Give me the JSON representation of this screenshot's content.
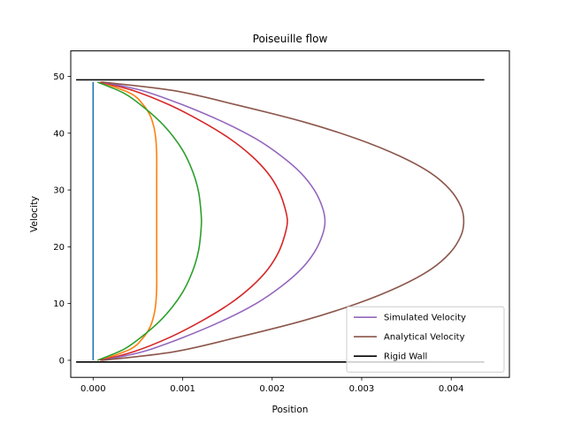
{
  "chart_data": {
    "type": "line",
    "title": "Poiseuille flow",
    "xlabel": "Position",
    "ylabel": "Velocity",
    "xlim": [
      -0.00025,
      0.00465
    ],
    "ylim": [
      -3,
      54.5
    ],
    "xticks": [
      0.0,
      0.001,
      0.002,
      0.003,
      0.004
    ],
    "xtick_labels": [
      "0.000",
      "0.001",
      "0.002",
      "0.003",
      "0.004"
    ],
    "yticks": [
      0,
      10,
      20,
      30,
      40,
      50
    ],
    "ytick_labels": [
      "0",
      "10",
      "20",
      "30",
      "40",
      "50"
    ],
    "grid": false,
    "legend_position": "lower-right",
    "series": [
      {
        "name": "",
        "color": "#1f77b4",
        "points": [
          [
            0.0,
            0
          ],
          [
            0.0,
            5
          ],
          [
            0.0,
            10
          ],
          [
            0.0,
            15
          ],
          [
            0.0,
            20
          ],
          [
            0.0,
            24.5
          ],
          [
            0.0,
            29
          ],
          [
            0.0,
            34
          ],
          [
            0.0,
            39
          ],
          [
            0.0,
            44
          ],
          [
            0.0,
            49
          ]
        ]
      },
      {
        "name": "",
        "color": "#ff7f0e",
        "points": [
          [
            8e-05,
            0
          ],
          [
            0.00042,
            2
          ],
          [
            0.00056,
            4
          ],
          [
            0.00064,
            6
          ],
          [
            0.00068,
            8
          ],
          [
            0.0007,
            10
          ],
          [
            0.00071,
            13
          ],
          [
            0.00071,
            17
          ],
          [
            0.00071,
            21
          ],
          [
            0.00071,
            24.5
          ],
          [
            0.00071,
            28
          ],
          [
            0.00071,
            32
          ],
          [
            0.00071,
            36
          ],
          [
            0.0007,
            39
          ],
          [
            0.00068,
            41
          ],
          [
            0.00064,
            43
          ],
          [
            0.00056,
            45
          ],
          [
            0.00042,
            47
          ],
          [
            8e-05,
            49
          ]
        ]
      },
      {
        "name": "",
        "color": "#2ca02c",
        "points": [
          [
            5e-05,
            0
          ],
          [
            0.00035,
            2
          ],
          [
            0.00057,
            4.5
          ],
          [
            0.00075,
            7
          ],
          [
            0.00089,
            9.5
          ],
          [
            0.001,
            12
          ],
          [
            0.00108,
            14.5
          ],
          [
            0.00114,
            17
          ],
          [
            0.00118,
            19.5
          ],
          [
            0.0012,
            22
          ],
          [
            0.00121,
            24.5
          ],
          [
            0.0012,
            27
          ],
          [
            0.00118,
            29.5
          ],
          [
            0.00114,
            32
          ],
          [
            0.00108,
            34.5
          ],
          [
            0.001,
            37
          ],
          [
            0.00089,
            39.5
          ],
          [
            0.00075,
            42
          ],
          [
            0.00057,
            44.5
          ],
          [
            0.00035,
            47
          ],
          [
            5e-05,
            49
          ]
        ]
      },
      {
        "name": "",
        "color": "#d62728",
        "points": [
          [
            8e-05,
            0
          ],
          [
            0.00045,
            1.5
          ],
          [
            0.00085,
            4
          ],
          [
            0.00122,
            7
          ],
          [
            0.00153,
            10
          ],
          [
            0.00177,
            13
          ],
          [
            0.00195,
            16
          ],
          [
            0.00207,
            19
          ],
          [
            0.00214,
            22
          ],
          [
            0.00217,
            24.5
          ],
          [
            0.00214,
            27
          ],
          [
            0.00207,
            30
          ],
          [
            0.00195,
            33
          ],
          [
            0.00177,
            36
          ],
          [
            0.00153,
            39
          ],
          [
            0.00122,
            42
          ],
          [
            0.00085,
            45
          ],
          [
            0.00045,
            47.5
          ],
          [
            8e-05,
            49
          ]
        ]
      },
      {
        "name": "Simulated Velocity",
        "color": "#9467bd",
        "points": [
          [
            0.0001,
            0
          ],
          [
            0.00055,
            1.5
          ],
          [
            0.001,
            4
          ],
          [
            0.00145,
            7
          ],
          [
            0.00182,
            10
          ],
          [
            0.0021,
            13
          ],
          [
            0.00232,
            16
          ],
          [
            0.00247,
            19
          ],
          [
            0.00256,
            22
          ],
          [
            0.00259,
            24.5
          ],
          [
            0.00256,
            27
          ],
          [
            0.00247,
            30
          ],
          [
            0.00232,
            33
          ],
          [
            0.0021,
            36
          ],
          [
            0.00182,
            39
          ],
          [
            0.00145,
            42
          ],
          [
            0.001,
            45
          ],
          [
            0.00055,
            47.5
          ],
          [
            0.0001,
            49
          ]
        ]
      },
      {
        "name": "Analytical Velocity",
        "color": "#8c564b",
        "points": [
          [
            0.0001,
            0
          ],
          [
            0.0009,
            1.5
          ],
          [
            0.0016,
            4
          ],
          [
            0.00235,
            7
          ],
          [
            0.00295,
            10
          ],
          [
            0.00342,
            13
          ],
          [
            0.00377,
            16
          ],
          [
            0.00399,
            19
          ],
          [
            0.00411,
            22
          ],
          [
            0.00414,
            24.5
          ],
          [
            0.00411,
            27
          ],
          [
            0.00399,
            30
          ],
          [
            0.00377,
            33
          ],
          [
            0.00342,
            36
          ],
          [
            0.00295,
            39
          ],
          [
            0.00235,
            42
          ],
          [
            0.0016,
            45
          ],
          [
            0.0009,
            47.5
          ],
          [
            0.0001,
            49
          ]
        ]
      },
      {
        "name": "Rigid Wall",
        "color": "#000000",
        "segments": [
          [
            [
              -0.00019,
              -0.3
            ],
            [
              0.00437,
              -0.3
            ]
          ],
          [
            [
              -0.00019,
              49.4
            ],
            [
              0.00437,
              49.4
            ]
          ]
        ]
      }
    ]
  }
}
